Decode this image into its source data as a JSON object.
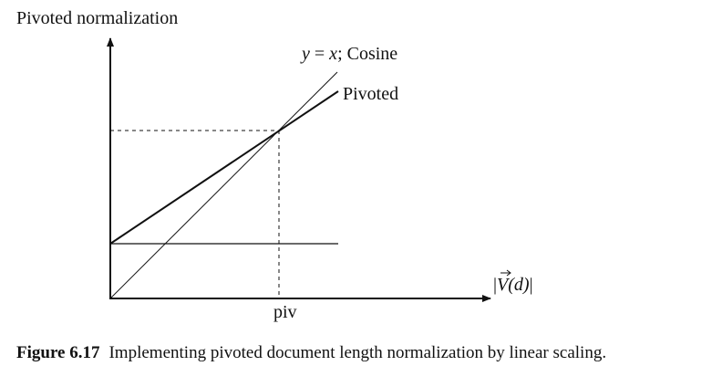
{
  "diagram": {
    "title": "Pivoted normalization",
    "line_labels": {
      "identity_y": "y",
      "identity_eq": " = ",
      "identity_x": "x",
      "identity_rest": "; Cosine",
      "pivoted": "Pivoted"
    },
    "x_axis_label": {
      "bar_left": "|",
      "v": "V",
      "arg": "(d)",
      "bar_right": "|"
    },
    "pivot_label": "piv"
  },
  "caption": {
    "number": "Figure 6.17",
    "text": "Implementing pivoted document length normalization by linear scaling."
  }
}
